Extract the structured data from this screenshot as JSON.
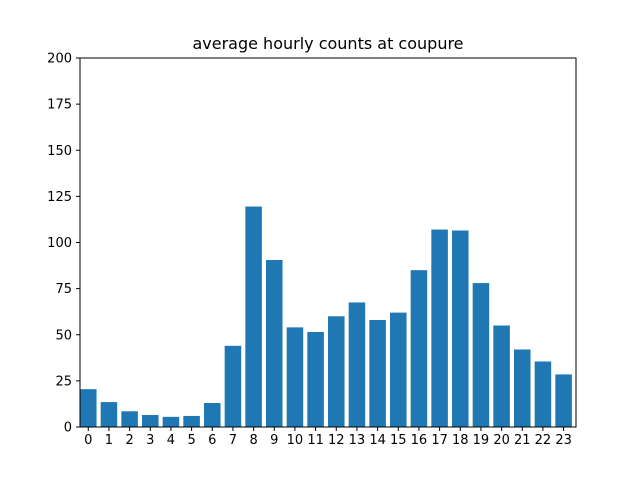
{
  "chart_data": {
    "type": "bar",
    "title": "average hourly counts at coupure",
    "xlabel": "",
    "ylabel": "",
    "categories": [
      "0",
      "1",
      "2",
      "3",
      "4",
      "5",
      "6",
      "7",
      "8",
      "9",
      "10",
      "11",
      "12",
      "13",
      "14",
      "15",
      "16",
      "17",
      "18",
      "19",
      "20",
      "21",
      "22",
      "23"
    ],
    "values": [
      20.5,
      13.5,
      8.5,
      6.5,
      5.5,
      6,
      13,
      44,
      119.5,
      90.5,
      54,
      51.5,
      60,
      67.5,
      58,
      62,
      85,
      107,
      106.5,
      78,
      55,
      42,
      35.5,
      28.5
    ],
    "ylim": [
      0,
      200
    ],
    "xlim": [
      -0.4,
      23.6
    ],
    "yticks": [
      0,
      25,
      50,
      75,
      100,
      125,
      150,
      175,
      200
    ],
    "grid": false,
    "bar_color": "#1f77b4"
  }
}
